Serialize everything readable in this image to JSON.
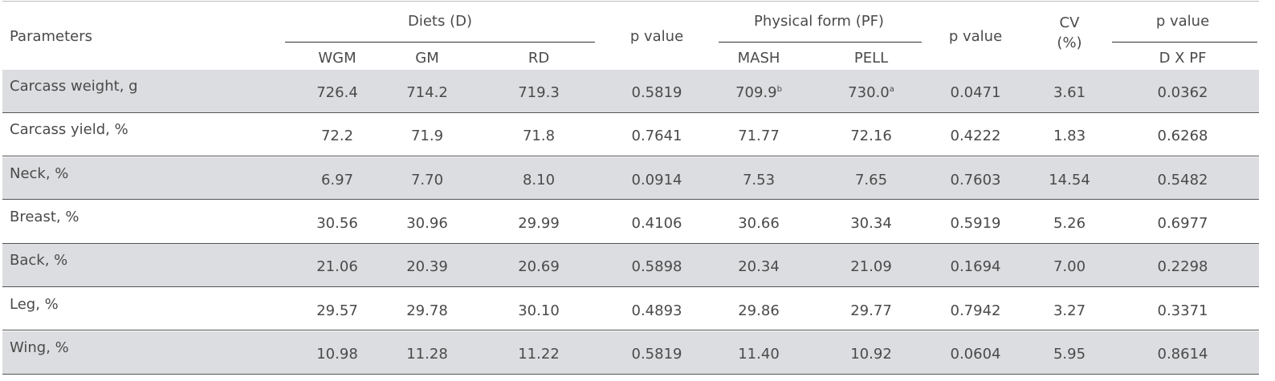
{
  "table": {
    "header": {
      "parameters": "Parameters",
      "diets": "Diets (D)",
      "p_value_d": "p value",
      "physical_form": "Physical form (PF)",
      "p_value_pf": "p value",
      "cv": "CV",
      "cv_unit": "(%)",
      "p_value_dxpf": "p value",
      "sub": [
        "WGM",
        "GM",
        "RD",
        "MASH",
        "PELL",
        "D X PF"
      ]
    },
    "rows": [
      {
        "label": "Carcass weight, g",
        "values": [
          "726.4",
          "714.2",
          "719.3",
          "0.5819",
          "709.9",
          "730.0",
          "0.0471",
          "3.61",
          "0.0362"
        ],
        "superscripts": {
          "4": "b",
          "5": "a"
        }
      },
      {
        "label": "Carcass yield, %",
        "values": [
          "72.2",
          "71.9",
          "71.8",
          "0.7641",
          "71.77",
          "72.16",
          "0.4222",
          "1.83",
          "0.6268"
        ]
      },
      {
        "label": "Neck, %",
        "values": [
          "6.97",
          "7.70",
          "8.10",
          "0.0914",
          "7.53",
          "7.65",
          "0.7603",
          "14.54",
          "0.5482"
        ]
      },
      {
        "label": "Breast, %",
        "values": [
          "30.56",
          "30.96",
          "29.99",
          "0.4106",
          "30.66",
          "30.34",
          "0.5919",
          "5.26",
          "0.6977"
        ]
      },
      {
        "label": "Back, %",
        "values": [
          "21.06",
          "20.39",
          "20.69",
          "0.5898",
          "20.34",
          "21.09",
          "0.1694",
          "7.00",
          "0.2298"
        ]
      },
      {
        "label": "Leg, %",
        "values": [
          "29.57",
          "29.78",
          "30.10",
          "0.4893",
          "29.86",
          "29.77",
          "0.7942",
          "3.27",
          "0.3371"
        ]
      },
      {
        "label": "Wing, %",
        "values": [
          "10.98",
          "11.28",
          "11.22",
          "0.5819",
          "11.40",
          "10.92",
          "0.0604",
          "5.95",
          "0.8614"
        ]
      }
    ]
  }
}
